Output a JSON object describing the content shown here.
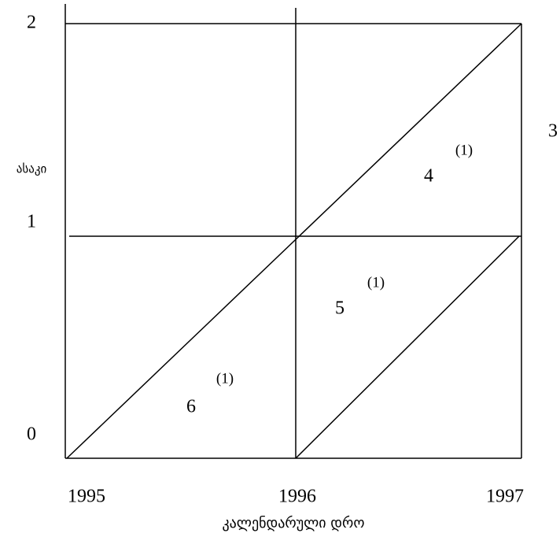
{
  "y_axis": {
    "label": "ასაკი",
    "ticks": [
      "0",
      "1",
      "2"
    ]
  },
  "x_axis": {
    "label": "კალენდარული დრო",
    "ticks": [
      "1995",
      "1996",
      "1997"
    ]
  },
  "side_label": "3",
  "regions": [
    {
      "label": "4",
      "note": "(1)"
    },
    {
      "label": "5",
      "note": "(1)"
    },
    {
      "label": "6",
      "note": "(1)"
    }
  ]
}
